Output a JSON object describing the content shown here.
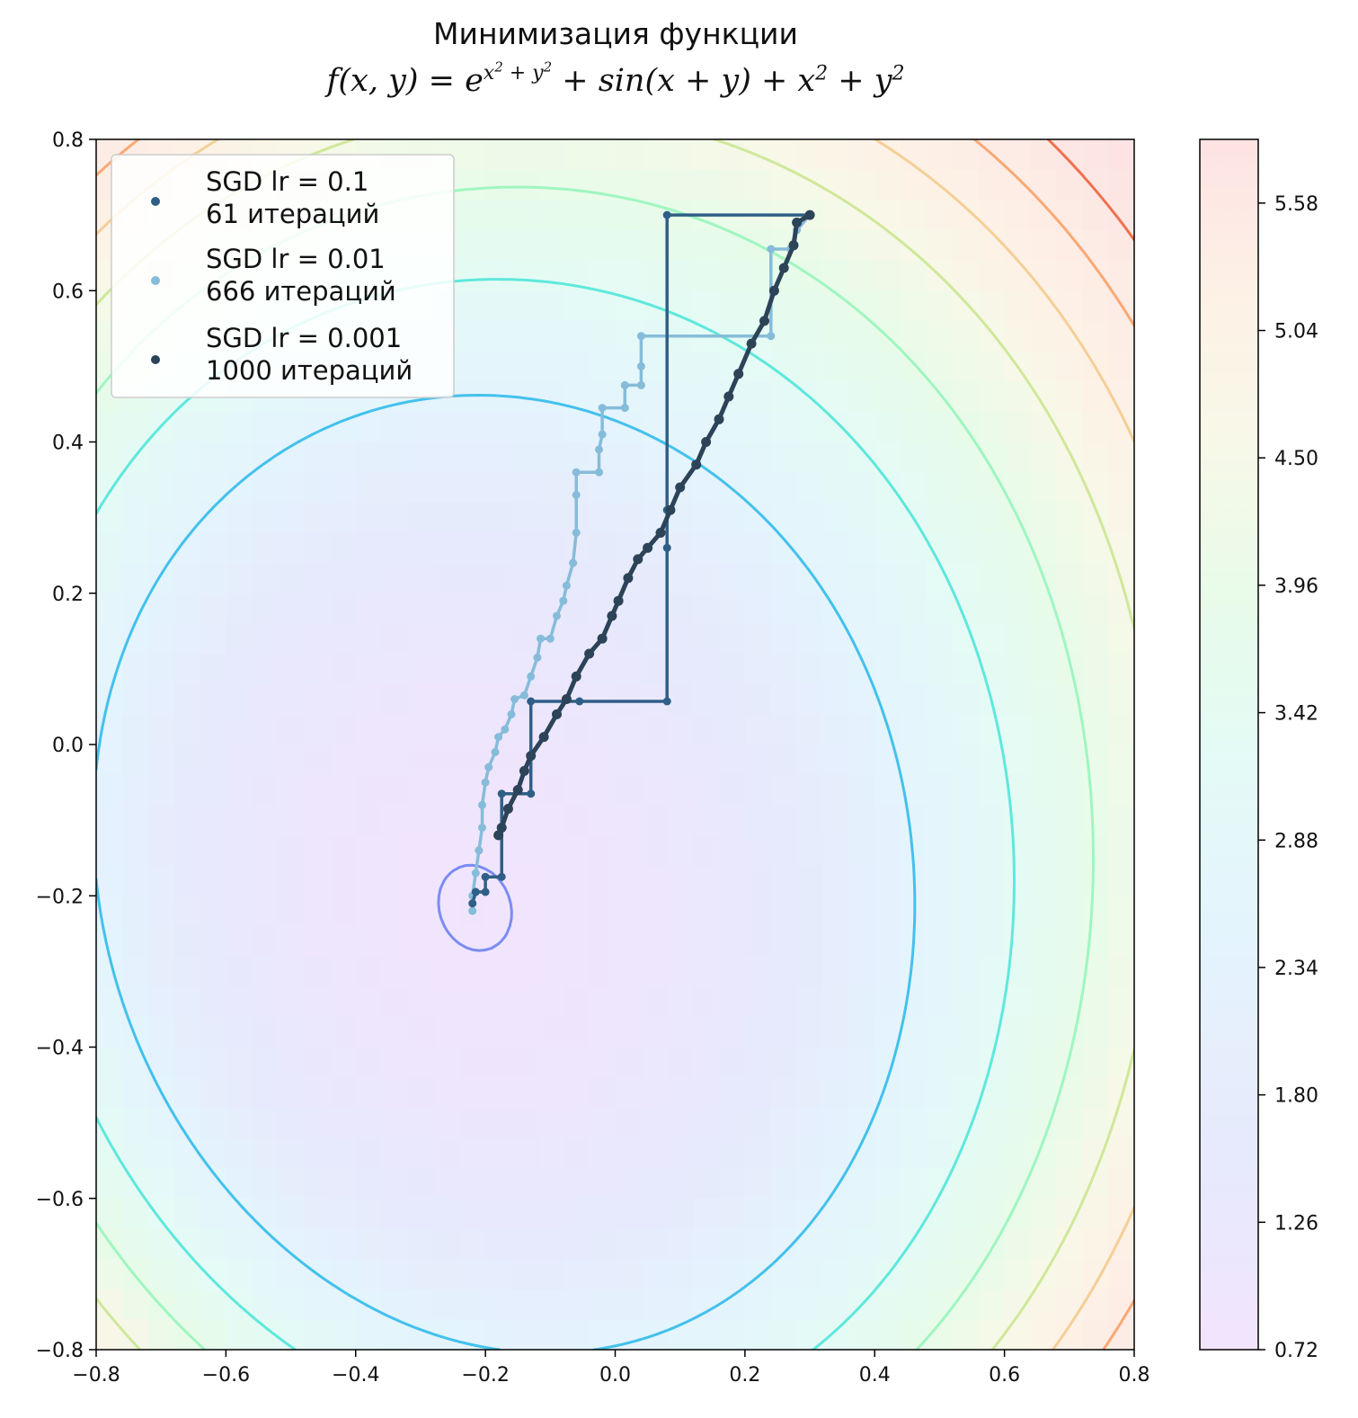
{
  "title": {
    "line1": "Минимизация функции",
    "formula_prefix": "f(x, y) = e",
    "formula_exp": "x",
    "formula_exp_sq": "2",
    "formula_exp_mid": " + y",
    "formula_exp_sq2": "2",
    "formula_rest": " + sin(x + y) + x",
    "formula_sq3": "2",
    "formula_rest2": " + y",
    "formula_sq4": "2"
  },
  "chart_data": {
    "type": "contour",
    "xlim": [
      -0.8,
      0.8
    ],
    "ylim": [
      -0.8,
      0.8
    ],
    "x_ticks": [
      "−0.8",
      "−0.6",
      "−0.4",
      "−0.2",
      "0.0",
      "0.2",
      "0.4",
      "0.6",
      "0.8"
    ],
    "y_ticks": [
      "−0.8",
      "−0.6",
      "−0.4",
      "−0.2",
      "0.0",
      "0.2",
      "0.4",
      "0.6",
      "0.8"
    ],
    "colorbar": {
      "min": 0.72,
      "max": 5.85,
      "ticks": [
        "0.72",
        "1.26",
        "1.80",
        "2.34",
        "2.88",
        "3.42",
        "3.96",
        "4.50",
        "5.04",
        "5.58"
      ],
      "tick_values": [
        0.72,
        1.26,
        1.8,
        2.34,
        2.88,
        3.42,
        3.96,
        4.5,
        5.04,
        5.58
      ]
    },
    "contour_levels": [
      {
        "level": 0.78,
        "color": "#7b8cf2"
      },
      {
        "level": 1.8,
        "color": "#43c1ec"
      },
      {
        "level": 2.34,
        "color": "#5fe8dc"
      },
      {
        "level": 2.88,
        "color": "#9ff6c0"
      },
      {
        "level": 3.42,
        "color": "#cfe89a"
      },
      {
        "level": 3.96,
        "color": "#f4cf96"
      },
      {
        "level": 4.5,
        "color": "#fba873"
      },
      {
        "level": 5.04,
        "color": "#f07050"
      }
    ],
    "legend_position": "upper-left",
    "series": [
      {
        "name": "SGD lr = 0.1",
        "name_line2": "61 итераций",
        "color": "#2f5f86",
        "points": [
          [
            0.3,
            0.7
          ],
          [
            0.08,
            0.7
          ],
          [
            0.08,
            0.31
          ],
          [
            0.08,
            0.26
          ],
          [
            0.08,
            0.057
          ],
          [
            -0.055,
            0.057
          ],
          [
            -0.13,
            0.057
          ],
          [
            -0.13,
            -0.065
          ],
          [
            -0.175,
            -0.065
          ],
          [
            -0.175,
            -0.175
          ],
          [
            -0.2,
            -0.175
          ],
          [
            -0.2,
            -0.195
          ],
          [
            -0.215,
            -0.195
          ],
          [
            -0.22,
            -0.21
          ]
        ]
      },
      {
        "name": "SGD lr = 0.01",
        "name_line2": "666 итераций",
        "color": "#86bcd9",
        "points": [
          [
            0.3,
            0.7
          ],
          [
            0.28,
            0.68
          ],
          [
            0.27,
            0.655
          ],
          [
            0.24,
            0.655
          ],
          [
            0.24,
            0.54
          ],
          [
            0.04,
            0.54
          ],
          [
            0.04,
            0.5
          ],
          [
            0.04,
            0.475
          ],
          [
            0.015,
            0.475
          ],
          [
            0.015,
            0.445
          ],
          [
            -0.02,
            0.445
          ],
          [
            -0.02,
            0.41
          ],
          [
            -0.025,
            0.39
          ],
          [
            -0.025,
            0.36
          ],
          [
            -0.06,
            0.36
          ],
          [
            -0.06,
            0.33
          ],
          [
            -0.06,
            0.28
          ],
          [
            -0.065,
            0.24
          ],
          [
            -0.075,
            0.21
          ],
          [
            -0.08,
            0.19
          ],
          [
            -0.09,
            0.17
          ],
          [
            -0.1,
            0.14
          ],
          [
            -0.115,
            0.14
          ],
          [
            -0.12,
            0.115
          ],
          [
            -0.13,
            0.09
          ],
          [
            -0.14,
            0.065
          ],
          [
            -0.155,
            0.06
          ],
          [
            -0.16,
            0.04
          ],
          [
            -0.17,
            0.02
          ],
          [
            -0.18,
            0.01
          ],
          [
            -0.185,
            -0.01
          ],
          [
            -0.195,
            -0.03
          ],
          [
            -0.2,
            -0.05
          ],
          [
            -0.205,
            -0.08
          ],
          [
            -0.205,
            -0.11
          ],
          [
            -0.21,
            -0.14
          ],
          [
            -0.215,
            -0.17
          ],
          [
            -0.22,
            -0.2
          ],
          [
            -0.22,
            -0.22
          ]
        ]
      },
      {
        "name": "SGD lr = 0.001",
        "name_line2": "1000 итераций",
        "color": "#2c4358",
        "points": [
          [
            0.3,
            0.7
          ],
          [
            0.28,
            0.69
          ],
          [
            0.275,
            0.66
          ],
          [
            0.26,
            0.63
          ],
          [
            0.245,
            0.6
          ],
          [
            0.23,
            0.56
          ],
          [
            0.21,
            0.53
          ],
          [
            0.19,
            0.49
          ],
          [
            0.175,
            0.46
          ],
          [
            0.16,
            0.43
          ],
          [
            0.14,
            0.4
          ],
          [
            0.125,
            0.37
          ],
          [
            0.1,
            0.34
          ],
          [
            0.085,
            0.31
          ],
          [
            0.07,
            0.28
          ],
          [
            0.05,
            0.26
          ],
          [
            0.035,
            0.245
          ],
          [
            0.02,
            0.22
          ],
          [
            0.005,
            0.19
          ],
          [
            -0.005,
            0.17
          ],
          [
            -0.02,
            0.14
          ],
          [
            -0.04,
            0.12
          ],
          [
            -0.06,
            0.09
          ],
          [
            -0.075,
            0.06
          ],
          [
            -0.09,
            0.04
          ],
          [
            -0.11,
            0.01
          ],
          [
            -0.13,
            -0.015
          ],
          [
            -0.14,
            -0.035
          ],
          [
            -0.15,
            -0.06
          ],
          [
            -0.165,
            -0.085
          ],
          [
            -0.175,
            -0.11
          ],
          [
            -0.18,
            -0.12
          ]
        ]
      }
    ]
  }
}
